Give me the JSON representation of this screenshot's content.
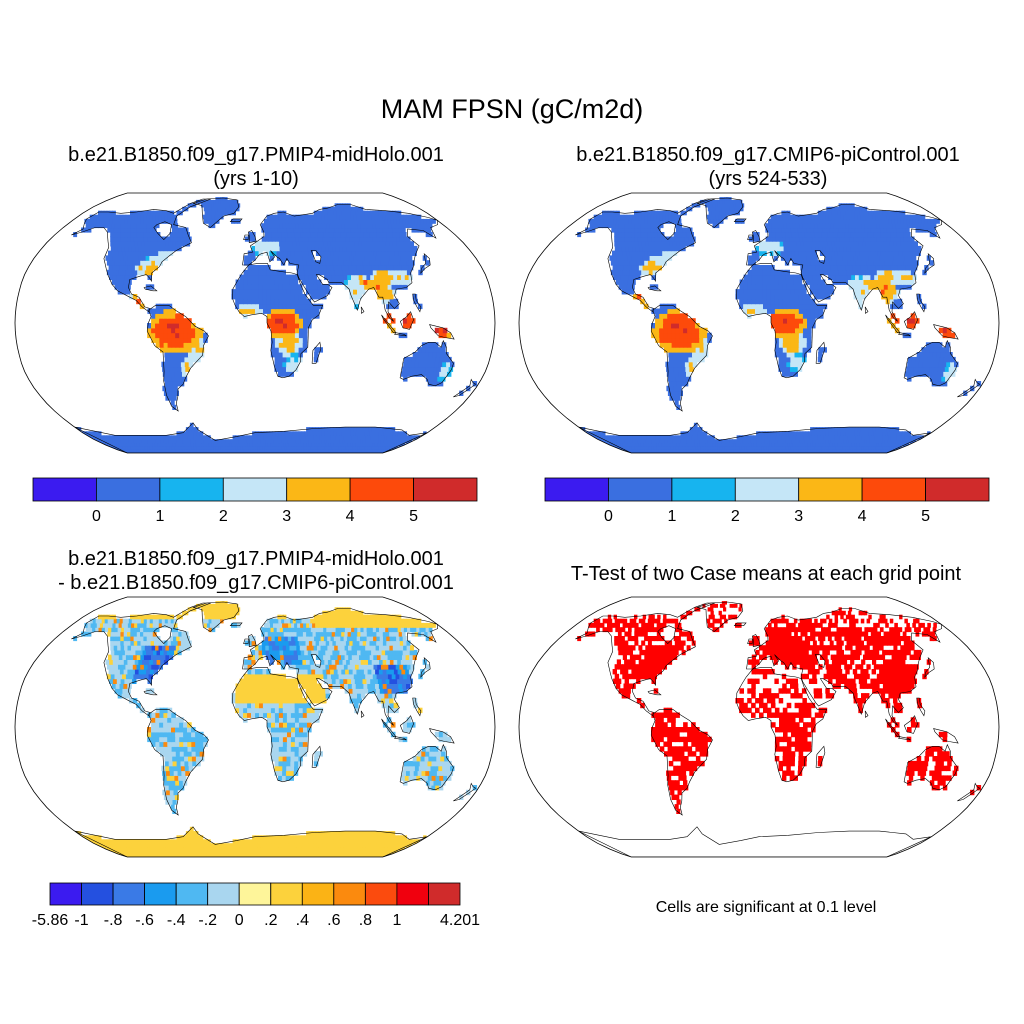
{
  "main_title": "MAM FPSN (gC/m2d)",
  "panels": [
    {
      "title_line1": "b.e21.B1850.f09_g17.PMIP4-midHolo.001",
      "title_line2": "(yrs 1-10)"
    },
    {
      "title_line1": "b.e21.B1850.f09_g17.CMIP6-piControl.001",
      "title_line2": "(yrs 524-533)"
    },
    {
      "title_line1": "b.e21.B1850.f09_g17.PMIP4-midHolo.001",
      "title_line2": "- b.e21.B1850.f09_g17.CMIP6-piControl.001"
    },
    {
      "title_line1": "T-Test of two Case means at each grid point"
    }
  ],
  "colorbar_abs": {
    "colors": [
      "#3b1bf0",
      "#3a6fe0",
      "#17b4ef",
      "#c5e6f7",
      "#fbb716",
      "#fd4a0b",
      "#d02b2b"
    ],
    "labels": [
      "0",
      "1",
      "2",
      "3",
      "4",
      "5"
    ]
  },
  "colorbar_diff": {
    "colors": [
      "#3b1bf0",
      "#2450e0",
      "#3a7ae6",
      "#1a9bef",
      "#4fb8f2",
      "#a9d6ef",
      "#fef59a",
      "#fcd23c",
      "#fbb315",
      "#fb8a0e",
      "#fb4b0e",
      "#f0000e",
      "#d02b2b"
    ],
    "labels": [
      "-5.86",
      "-1",
      "-.8",
      "-.6",
      "-.4",
      "-.2",
      "0",
      ".2",
      ".4",
      ".6",
      ".8",
      "1",
      "4.201"
    ]
  },
  "ttest_color": "#ff0000",
  "note": "Cells are significant at 0.1 level"
}
